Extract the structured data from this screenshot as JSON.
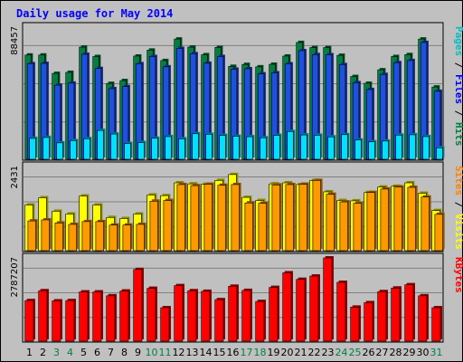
{
  "chart_data": {
    "type": "bar",
    "title": "Daily usage for May 2014",
    "x": [
      "1",
      "2",
      "3",
      "4",
      "5",
      "6",
      "7",
      "8",
      "9",
      "10",
      "11",
      "12",
      "13",
      "14",
      "15",
      "16",
      "17",
      "18",
      "19",
      "20",
      "21",
      "22",
      "23",
      "24",
      "25",
      "26",
      "27",
      "28",
      "29",
      "30",
      "31"
    ],
    "weekend_days": [
      "3",
      "4",
      "10",
      "11",
      "17",
      "18",
      "24",
      "25",
      "31"
    ],
    "panels": [
      {
        "id": "pfh",
        "max_label": "88457",
        "ylim": [
          0,
          88457
        ],
        "legend": [
          {
            "text": "Pages",
            "color": "#00c0c0"
          },
          {
            "text": " / ",
            "color": "#000000"
          },
          {
            "text": "Files",
            "color": "#0000ff"
          },
          {
            "text": " / ",
            "color": "#000000"
          },
          {
            "text": "Hits",
            "color": "#008040"
          }
        ],
        "series": [
          {
            "name": "Hits",
            "color": "#008040",
            "values": [
              69800,
              69800,
              57500,
              58200,
              75100,
              68800,
              50800,
              52700,
              69100,
              73100,
              66100,
              80500,
              75100,
              70000,
              74900,
              62200,
              63500,
              61900,
              63600,
              69100,
              78200,
              74800,
              74800,
              69600,
              55400,
              50900,
              59900,
              68800,
              70100,
              80500,
              48400
            ]
          },
          {
            "name": "Files",
            "color": "#2050e0",
            "values": [
              64000,
              64200,
              49600,
              51000,
              70300,
              60800,
              47300,
              48700,
              64000,
              68800,
              61900,
              74200,
              70700,
              64300,
              68800,
              60300,
              60600,
              57200,
              57900,
              63900,
              72700,
              70100,
              70000,
              63400,
              51300,
              46700,
              56800,
              64700,
              66100,
              78200,
              45500
            ]
          },
          {
            "name": "Pages",
            "color": "#00e0ff",
            "values": [
              14000,
              14600,
              11000,
              12500,
              13800,
              19300,
              16900,
              10600,
              11200,
              14100,
              15200,
              13700,
              17100,
              16700,
              16000,
              15400,
              15100,
              14400,
              16000,
              18600,
              16300,
              16100,
              15000,
              16500,
              12900,
              11700,
              12200,
              16200,
              16400,
              15200,
              7700
            ]
          }
        ]
      },
      {
        "id": "sv",
        "max_label": "2431",
        "ylim": [
          0,
          2431
        ],
        "legend": [
          {
            "text": "Sites",
            "color": "#ff8000"
          },
          {
            "text": " / ",
            "color": "#000000"
          },
          {
            "text": "Visits",
            "color": "#ffff00"
          }
        ],
        "series": [
          {
            "name": "Visits",
            "color": "#ffff00",
            "values": [
              1320,
              1530,
              1140,
              1060,
              1580,
              1320,
              960,
              930,
              1060,
              1610,
              1590,
              1960,
              1930,
              1920,
              2030,
              2200,
              1540,
              1450,
              1930,
              1960,
              1910,
              2030,
              1700,
              1450,
              1440,
              1680,
              1840,
              1860,
              1960,
              1660,
              1160
            ]
          },
          {
            "name": "Sites",
            "color": "#ff9900",
            "values": [
              860,
              890,
              800,
              760,
              840,
              840,
              740,
              740,
              760,
              1430,
              1450,
              1910,
              1880,
              1920,
              1890,
              1910,
              1380,
              1370,
              1900,
              1910,
              1920,
              2030,
              1630,
              1410,
              1370,
              1680,
              1780,
              1840,
              1830,
              1550,
              1050
            ]
          }
        ]
      },
      {
        "id": "kb",
        "max_label": "2787207",
        "ylim": [
          0,
          2787207
        ],
        "legend": [
          {
            "text": "KBytes",
            "color": "#ff0000"
          }
        ],
        "series": [
          {
            "name": "KBytes",
            "color": "#ff0000",
            "values": [
              1360000,
              1690000,
              1350000,
              1360000,
              1650000,
              1650000,
              1520000,
              1680000,
              2400000,
              1770000,
              1120000,
              1860000,
              1690000,
              1670000,
              1390000,
              1840000,
              1700000,
              1330000,
              1800000,
              2290000,
              2070000,
              2180000,
              2787207,
              1970000,
              1140000,
              1290000,
              1660000,
              1780000,
              1890000,
              1520000,
              1120000
            ]
          }
        ]
      }
    ]
  }
}
